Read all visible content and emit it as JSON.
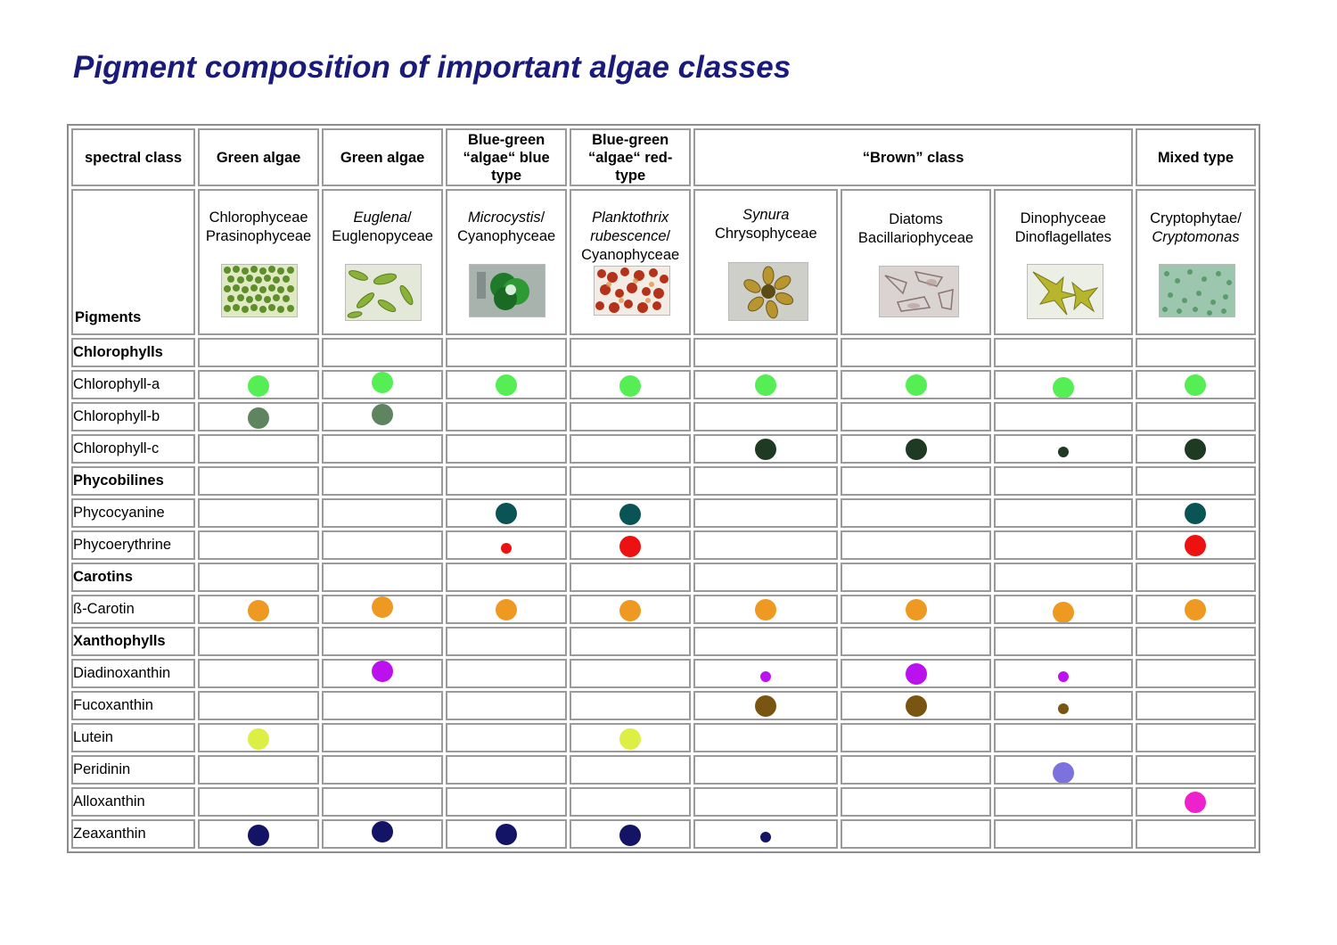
{
  "title": "Pigment composition of important algae classes",
  "header": {
    "col0": "spectral class",
    "col1": "Green algae",
    "col2": "Green algae",
    "col3": [
      "Blue-green",
      "“algae“ blue",
      "type"
    ],
    "col4": [
      "Blue-green",
      "“algae“ red-",
      "type"
    ],
    "brown": "“Brown” class",
    "mixed": "Mixed type"
  },
  "pigments_label": "Pigments",
  "organisms": [
    {
      "italic": "",
      "line1": "Chlorophyceae",
      "line2": "Prasinophyceae",
      "line3": ""
    },
    {
      "italic": "Euglena",
      "line1": "/",
      "line2": "Euglenopyceae",
      "line3": ""
    },
    {
      "italic": "Microcystis",
      "line1": "/",
      "line2": "Cyanophyceae",
      "line3": ""
    },
    {
      "italic": "Planktothrix",
      "line1": "",
      "line2": "rubescence",
      "line3": "Cyanophyceae"
    },
    {
      "italic": "Synura",
      "line1": "",
      "line2": "Chrysophyceae",
      "line3": ""
    },
    {
      "italic": "",
      "line1": "Diatoms",
      "line2": "Bacillariophyceae",
      "line3": ""
    },
    {
      "italic": "",
      "line1": "Dinophyceae",
      "line2": "Dinoflagellates",
      "line3": ""
    },
    {
      "italic": "Cryptomonas",
      "line1": "Cryptophytae/",
      "line2": "",
      "line3": ""
    }
  ],
  "rows": [
    {
      "label": "Chlorophylls",
      "group": true,
      "dots": [
        0,
        0,
        0,
        0,
        0,
        0,
        0,
        0
      ]
    },
    {
      "label": "Chlorophyll-a",
      "group": false,
      "color": "#55ee55",
      "dots": [
        2,
        2,
        2,
        2,
        2,
        2,
        2,
        2
      ]
    },
    {
      "label": "Chlorophyll-b",
      "group": false,
      "color": "#5e8460",
      "dots": [
        2,
        2,
        0,
        0,
        0,
        0,
        0,
        0
      ]
    },
    {
      "label": "Chlorophyll-c",
      "group": false,
      "color": "#1f3a22",
      "dots": [
        0,
        0,
        0,
        0,
        2,
        2,
        1,
        2
      ]
    },
    {
      "label": "Phycobilines",
      "group": true,
      "dots": [
        0,
        0,
        0,
        0,
        0,
        0,
        0,
        0
      ]
    },
    {
      "label": "Phycocyanine",
      "group": false,
      "color": "#0b5456",
      "dots": [
        0,
        0,
        2,
        2,
        0,
        0,
        0,
        2
      ]
    },
    {
      "label": "Phycoerythrine",
      "group": false,
      "color": "#ee1111",
      "dots": [
        0,
        0,
        1,
        2,
        0,
        0,
        0,
        2
      ]
    },
    {
      "label": "Carotins",
      "group": true,
      "dots": [
        0,
        0,
        0,
        0,
        0,
        0,
        0,
        0
      ]
    },
    {
      "label": "ß-Carotin",
      "group": false,
      "color": "#ee9922",
      "dots": [
        2,
        2,
        2,
        2,
        2,
        2,
        2,
        2
      ]
    },
    {
      "label": "Xanthophylls",
      "group": true,
      "dots": [
        0,
        0,
        0,
        0,
        0,
        0,
        0,
        0
      ]
    },
    {
      "label": "Diadinoxanthin",
      "group": false,
      "color": "#bb11ee",
      "dots": [
        0,
        2,
        0,
        0,
        1,
        2,
        1,
        0
      ]
    },
    {
      "label": "Fucoxanthin",
      "group": false,
      "color": "#7a5512",
      "dots": [
        0,
        0,
        0,
        0,
        2,
        2,
        1,
        0
      ]
    },
    {
      "label": "Lutein",
      "group": false,
      "color": "#ddee44",
      "dots": [
        2,
        0,
        0,
        2,
        0,
        0,
        0,
        0
      ]
    },
    {
      "label": "Peridinin",
      "group": false,
      "color": "#7b72dd",
      "dots": [
        0,
        0,
        0,
        0,
        0,
        0,
        2,
        0
      ]
    },
    {
      "label": "Alloxanthin",
      "group": false,
      "color": "#ee22cc",
      "dots": [
        0,
        0,
        0,
        0,
        0,
        0,
        0,
        2
      ]
    },
    {
      "label": "Zeaxanthin",
      "group": false,
      "color": "#141466",
      "dots": [
        2,
        2,
        2,
        2,
        1,
        0,
        0,
        0
      ]
    }
  ]
}
